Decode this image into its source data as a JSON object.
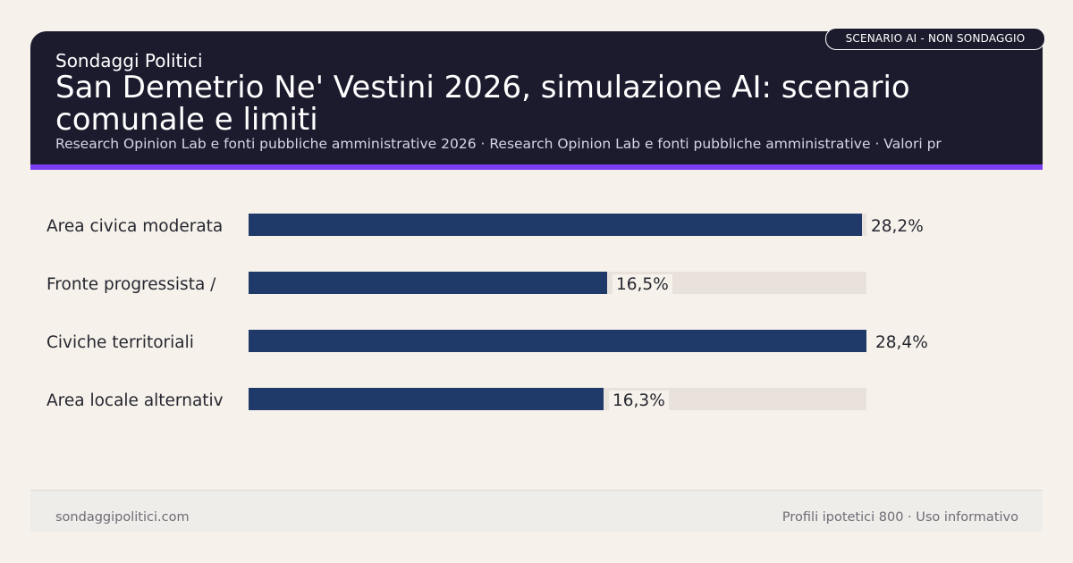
{
  "header": {
    "badge": "SCENARIO AI - NON SONDAGGIO",
    "brand": "Sondaggi Politici",
    "title": "San Demetrio Ne' Vestini 2026, simulazione AI: scenario comunale e limiti",
    "subtitle": "Research Opinion Lab e fonti pubbliche amministrative 2026 · Research Opinion Lab e fonti pubbliche amministrative · Valori pr"
  },
  "colors": {
    "header_bg": "#1c1b2e",
    "accent": "#7a3df0",
    "bar": "#1f3a68",
    "track": "#e8e2da",
    "background": "#f6f2eb"
  },
  "chart_data": {
    "type": "bar",
    "orientation": "horizontal",
    "categories": [
      "Area civica moderata",
      "Fronte progressista /",
      "Civiche territoriali",
      "Area locale alternativ"
    ],
    "values": [
      28.2,
      16.5,
      28.4,
      16.3
    ],
    "value_labels": [
      "28,2%",
      "16,5%",
      "28,4%",
      "16,3%"
    ],
    "unit": "%",
    "xlim": [
      0,
      28.4
    ],
    "grid": false,
    "legend": "none"
  },
  "footer": {
    "site": "sondaggipolitici.com",
    "note": "Profili ipotetici 800 · Uso informativo"
  }
}
